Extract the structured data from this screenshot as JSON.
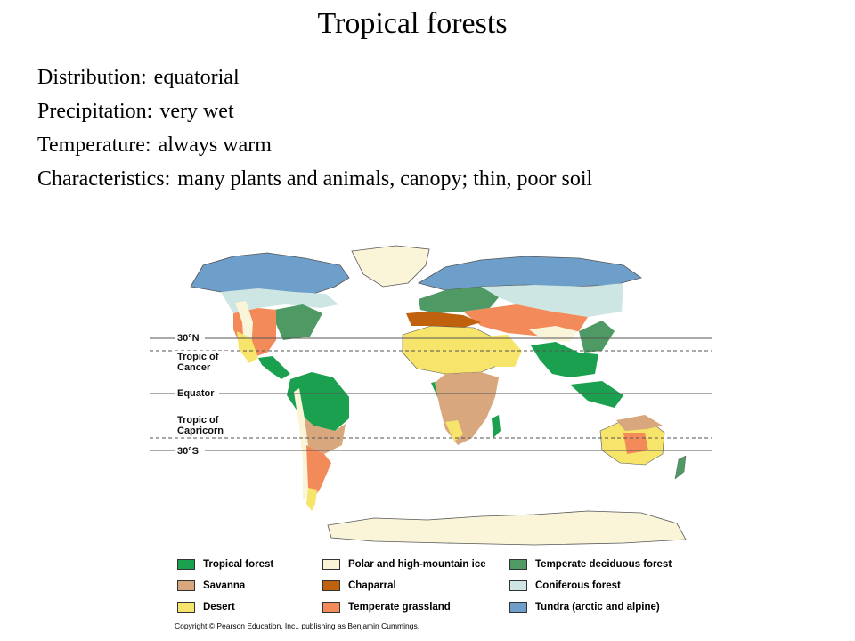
{
  "title": "Tropical forests",
  "facts": [
    {
      "label": "Distribution:",
      "value": "equatorial"
    },
    {
      "label": "Precipitation:",
      "value": "very wet"
    },
    {
      "label": "Temperature:",
      "value": "always warm"
    },
    {
      "label": "Characteristics:",
      "value": "many plants and animals, canopy; thin, poor soil"
    }
  ],
  "latitudes": {
    "n30": "30°N",
    "tropic_cancer_1": "Tropic of",
    "tropic_cancer_2": "Cancer",
    "equator": "Equator",
    "tropic_capricorn_1": "Tropic of",
    "tropic_capricorn_2": "Capricorn",
    "s30": "30°S"
  },
  "legend": [
    {
      "label": "Tropical forest",
      "color": "#1aa04f"
    },
    {
      "label": "Savanna",
      "color": "#d9a77e"
    },
    {
      "label": "Desert",
      "color": "#f7e46a"
    },
    {
      "label": "Polar and high-mountain ice",
      "color": "#faf5d8"
    },
    {
      "label": "Chaparral",
      "color": "#c0620d"
    },
    {
      "label": "Temperate grassland",
      "color": "#f28a5a"
    },
    {
      "label": "Temperate deciduous forest",
      "color": "#4f9a64"
    },
    {
      "label": "Coniferous forest",
      "color": "#cde6e3"
    },
    {
      "label": "Tundra (arctic and alpine)",
      "color": "#6e9fca"
    }
  ],
  "copyright": "Copyright © Pearson Education, Inc., publishing as Benjamin Cummings."
}
